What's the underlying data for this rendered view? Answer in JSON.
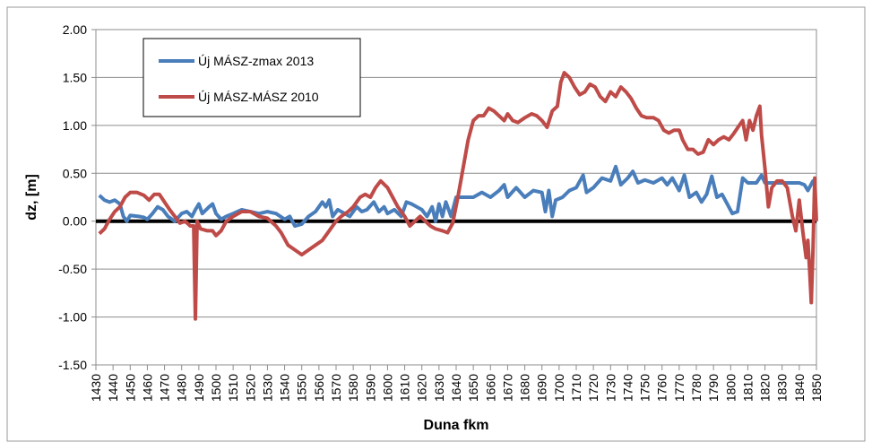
{
  "chart_data": {
    "type": "line",
    "xlabel": "Duna fkm",
    "ylabel": "dz, [m]",
    "xlim": [
      1430,
      1850
    ],
    "xticks": [
      1430,
      1440,
      1450,
      1460,
      1470,
      1480,
      1490,
      1500,
      1510,
      1520,
      1530,
      1540,
      1550,
      1560,
      1570,
      1580,
      1590,
      1600,
      1610,
      1620,
      1630,
      1640,
      1650,
      1660,
      1670,
      1680,
      1690,
      1700,
      1710,
      1720,
      1730,
      1740,
      1750,
      1760,
      1770,
      1780,
      1790,
      1800,
      1810,
      1820,
      1830,
      1840,
      1850
    ],
    "ylim": [
      -1.5,
      2
    ],
    "yticks": [
      {
        "value": -1.5,
        "label": "-1.50"
      },
      {
        "value": -1,
        "label": "-1.00"
      },
      {
        "value": -0.5,
        "label": "-0.50"
      },
      {
        "value": 0,
        "label": "0.00"
      },
      {
        "value": 0.5,
        "label": "0.50"
      },
      {
        "value": 1,
        "label": "1.00"
      },
      {
        "value": 1.5,
        "label": "1.50"
      },
      {
        "value": 2,
        "label": "2.00"
      }
    ],
    "grid": true,
    "legend": "upper left",
    "series": [
      {
        "name": "Új MÁSZ-zmax 2013",
        "color": "#4a7ebb",
        "x": [
          1432,
          1435,
          1438,
          1441,
          1444,
          1446,
          1448,
          1450,
          1455,
          1458,
          1460,
          1463,
          1466,
          1469,
          1472,
          1476,
          1480,
          1483,
          1486,
          1488,
          1490,
          1492,
          1496,
          1498,
          1500,
          1503,
          1506,
          1510,
          1515,
          1520,
          1525,
          1530,
          1535,
          1540,
          1543,
          1546,
          1550,
          1554,
          1558,
          1562,
          1564,
          1566,
          1568,
          1571,
          1575,
          1578,
          1582,
          1585,
          1588,
          1592,
          1595,
          1598,
          1600,
          1604,
          1608,
          1611,
          1614,
          1617,
          1620,
          1623,
          1626,
          1628,
          1630,
          1632,
          1634,
          1637,
          1640,
          1645,
          1650,
          1655,
          1660,
          1665,
          1668,
          1670,
          1675,
          1680,
          1685,
          1690,
          1692,
          1694,
          1696,
          1698,
          1702,
          1706,
          1710,
          1714,
          1716,
          1720,
          1725,
          1730,
          1733,
          1736,
          1740,
          1743,
          1746,
          1750,
          1755,
          1760,
          1763,
          1766,
          1770,
          1773,
          1776,
          1780,
          1783,
          1786,
          1789,
          1792,
          1795,
          1798,
          1801,
          1804,
          1807,
          1810,
          1815,
          1818,
          1820,
          1825,
          1830,
          1835,
          1840,
          1843,
          1845,
          1848,
          1850
        ],
        "values": [
          0.27,
          0.22,
          0.2,
          0.22,
          0.18,
          0.05,
          0.0,
          0.06,
          0.05,
          0.04,
          0.02,
          0.08,
          0.15,
          0.12,
          0.05,
          0.0,
          0.08,
          0.1,
          0.05,
          0.12,
          0.18,
          0.08,
          0.15,
          0.18,
          0.08,
          0.02,
          0.05,
          0.08,
          0.12,
          0.1,
          0.08,
          0.1,
          0.08,
          0.02,
          0.05,
          -0.05,
          -0.03,
          0.05,
          0.1,
          0.2,
          0.15,
          0.22,
          0.05,
          0.12,
          0.08,
          0.05,
          0.15,
          0.1,
          0.12,
          0.2,
          0.1,
          0.15,
          0.08,
          0.12,
          0.05,
          0.2,
          0.18,
          0.15,
          0.12,
          0.05,
          0.15,
          0.0,
          0.18,
          0.05,
          0.2,
          0.05,
          0.25,
          0.25,
          0.25,
          0.3,
          0.25,
          0.32,
          0.38,
          0.25,
          0.35,
          0.25,
          0.32,
          0.3,
          0.1,
          0.32,
          0.05,
          0.22,
          0.25,
          0.32,
          0.35,
          0.48,
          0.3,
          0.35,
          0.45,
          0.42,
          0.57,
          0.38,
          0.45,
          0.52,
          0.4,
          0.43,
          0.4,
          0.45,
          0.38,
          0.45,
          0.32,
          0.48,
          0.25,
          0.3,
          0.2,
          0.28,
          0.47,
          0.25,
          0.28,
          0.18,
          0.08,
          0.1,
          0.45,
          0.4,
          0.4,
          0.48,
          0.4,
          0.4,
          0.4,
          0.4,
          0.4,
          0.38,
          0.32,
          0.42,
          0.42
        ]
      },
      {
        "name": "Új MÁSZ-MÁSZ 2010",
        "color": "#be4b48",
        "x": [
          1432,
          1435,
          1438,
          1441,
          1444,
          1447,
          1450,
          1454,
          1458,
          1461,
          1464,
          1467,
          1470,
          1473,
          1476,
          1479,
          1482,
          1485,
          1487,
          1488,
          1489,
          1491,
          1495,
          1498,
          1500,
          1503,
          1506,
          1510,
          1515,
          1520,
          1525,
          1530,
          1535,
          1538,
          1542,
          1546,
          1550,
          1554,
          1558,
          1562,
          1566,
          1570,
          1573,
          1577,
          1580,
          1584,
          1587,
          1590,
          1593,
          1596,
          1600,
          1603,
          1606,
          1610,
          1613,
          1616,
          1619,
          1622,
          1625,
          1628,
          1632,
          1635,
          1638,
          1641,
          1644,
          1647,
          1650,
          1653,
          1656,
          1659,
          1662,
          1665,
          1668,
          1670,
          1673,
          1676,
          1680,
          1684,
          1687,
          1690,
          1693,
          1696,
          1699,
          1701,
          1703,
          1706,
          1709,
          1712,
          1715,
          1718,
          1721,
          1724,
          1727,
          1730,
          1733,
          1736,
          1739,
          1742,
          1745,
          1748,
          1751,
          1755,
          1758,
          1761,
          1764,
          1767,
          1770,
          1772,
          1775,
          1778,
          1781,
          1784,
          1787,
          1790,
          1793,
          1796,
          1799,
          1802,
          1805,
          1807,
          1809,
          1811,
          1813,
          1815,
          1817,
          1818,
          1820,
          1822,
          1824,
          1827,
          1830,
          1833,
          1836,
          1838,
          1840,
          1842,
          1844,
          1845,
          1846,
          1847,
          1848,
          1849,
          1850
        ],
        "values": [
          -0.13,
          -0.08,
          0.02,
          0.1,
          0.15,
          0.25,
          0.3,
          0.3,
          0.27,
          0.22,
          0.28,
          0.28,
          0.2,
          0.12,
          0.05,
          -0.02,
          0.0,
          -0.05,
          -0.05,
          -1.02,
          0.0,
          -0.08,
          -0.1,
          -0.1,
          -0.15,
          -0.1,
          0.0,
          0.05,
          0.1,
          0.1,
          0.05,
          0.03,
          -0.05,
          -0.12,
          -0.25,
          -0.3,
          -0.35,
          -0.3,
          -0.25,
          -0.2,
          -0.1,
          0.0,
          0.05,
          0.1,
          0.15,
          0.25,
          0.28,
          0.25,
          0.35,
          0.42,
          0.35,
          0.25,
          0.15,
          0.05,
          -0.05,
          0.0,
          0.05,
          0.0,
          -0.05,
          -0.08,
          -0.1,
          -0.12,
          -0.02,
          0.25,
          0.55,
          0.85,
          1.05,
          1.1,
          1.1,
          1.18,
          1.15,
          1.1,
          1.05,
          1.12,
          1.05,
          1.03,
          1.08,
          1.12,
          1.1,
          1.05,
          0.98,
          1.15,
          1.2,
          1.45,
          1.55,
          1.5,
          1.4,
          1.32,
          1.35,
          1.43,
          1.4,
          1.3,
          1.25,
          1.35,
          1.3,
          1.4,
          1.35,
          1.28,
          1.18,
          1.1,
          1.08,
          1.08,
          1.05,
          0.95,
          0.92,
          0.95,
          0.95,
          0.85,
          0.75,
          0.75,
          0.7,
          0.72,
          0.85,
          0.8,
          0.85,
          0.88,
          0.85,
          0.92,
          1.0,
          1.05,
          0.85,
          1.05,
          0.95,
          1.1,
          1.2,
          0.9,
          0.55,
          0.15,
          0.35,
          0.42,
          0.42,
          0.35,
          0.05,
          -0.1,
          0.22,
          -0.1,
          -0.38,
          -0.2,
          -0.5,
          -0.85,
          -0.3,
          0.45,
          0.0
        ]
      }
    ]
  }
}
